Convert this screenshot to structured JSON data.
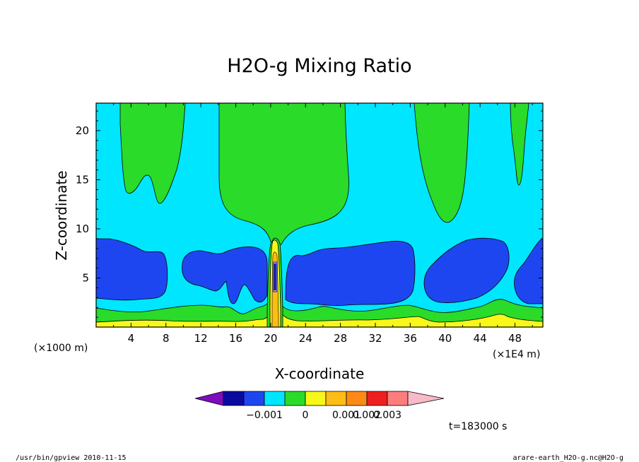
{
  "chart_data": {
    "type": "contour",
    "title": "H2O-g Mixing Ratio",
    "xlabel": "X-coordinate",
    "ylabel": "Z-coordinate",
    "x_unit_left": "(×1000 m)",
    "x_unit_right": "(×1E4 m)",
    "xlim": [
      0,
      51.2
    ],
    "ylim": [
      0,
      22.8
    ],
    "x_ticks": [
      4,
      8,
      12,
      16,
      20,
      24,
      28,
      32,
      36,
      40,
      44,
      48
    ],
    "y_ticks": [
      5,
      10,
      15,
      20
    ],
    "time_label": "t=183000 s",
    "colorbar": {
      "labels": [
        "-0.001",
        "0",
        "0.001",
        "0.002",
        "0.003"
      ],
      "label_boundary_index": [
        2,
        4,
        6,
        7,
        8
      ],
      "colors": [
        "#7d0dbd",
        "#0a0aa0",
        "#1e46f0",
        "#00e6ff",
        "#2adb2a",
        "#f7f71a",
        "#fdbd16",
        "#fd8a16",
        "#ee1f1f",
        "#fb7d7d",
        "#f9b9c6"
      ]
    }
  },
  "footer": {
    "left": "/usr/bin/gpview   2010-11-15",
    "right": "arare-earth_H2O-g.nc@H2O-g"
  }
}
